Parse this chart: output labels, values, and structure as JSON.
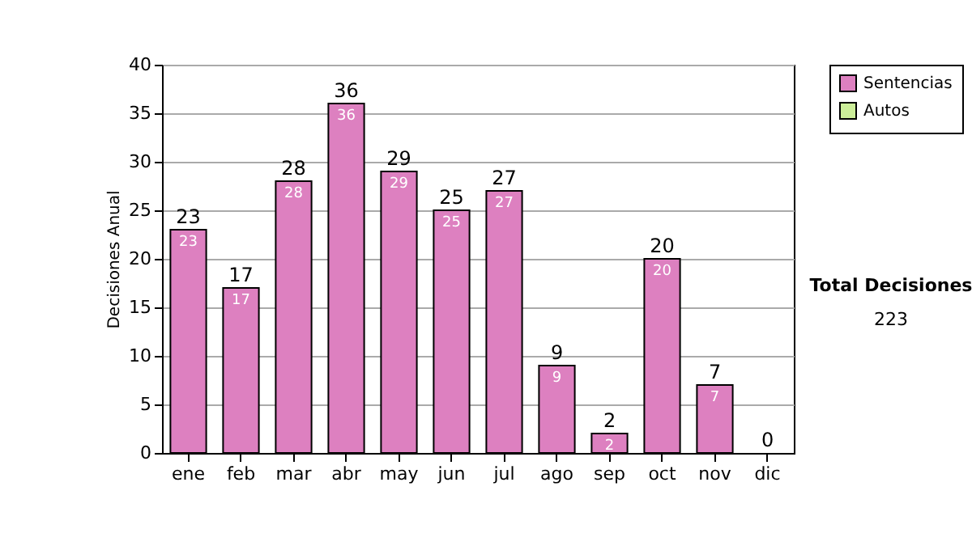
{
  "chart_data": {
    "type": "bar",
    "stacked": true,
    "ylabel": "Decisiones Anual",
    "categories": [
      "ene",
      "feb",
      "mar",
      "abr",
      "may",
      "jun",
      "jul",
      "ago",
      "sep",
      "oct",
      "nov",
      "dic"
    ],
    "series": [
      {
        "name": "Sentencias",
        "color": "#dd80c0",
        "values": [
          23,
          17,
          28,
          36,
          29,
          25,
          27,
          9,
          2,
          20,
          7,
          0
        ],
        "value_labels": [
          "23",
          "17",
          "28",
          "36",
          "29",
          "25",
          "27",
          "9",
          "2",
          "20",
          "7",
          null
        ]
      },
      {
        "name": "Autos",
        "color": "#ccee99",
        "values": [
          0,
          0,
          0,
          0,
          0,
          0,
          0,
          0,
          0,
          0,
          0,
          0
        ]
      }
    ],
    "totals": [
      "23",
      "17",
      "28",
      "36",
      "29",
      "25",
      "27",
      "9",
      "2",
      "20",
      "7",
      "0"
    ],
    "ylim": [
      0,
      40
    ],
    "yticks": [
      0,
      5,
      10,
      15,
      20,
      25,
      30,
      35,
      40
    ],
    "grid": "y",
    "legend": "right",
    "annotations": [
      "Total Decisiones",
      "223"
    ]
  }
}
